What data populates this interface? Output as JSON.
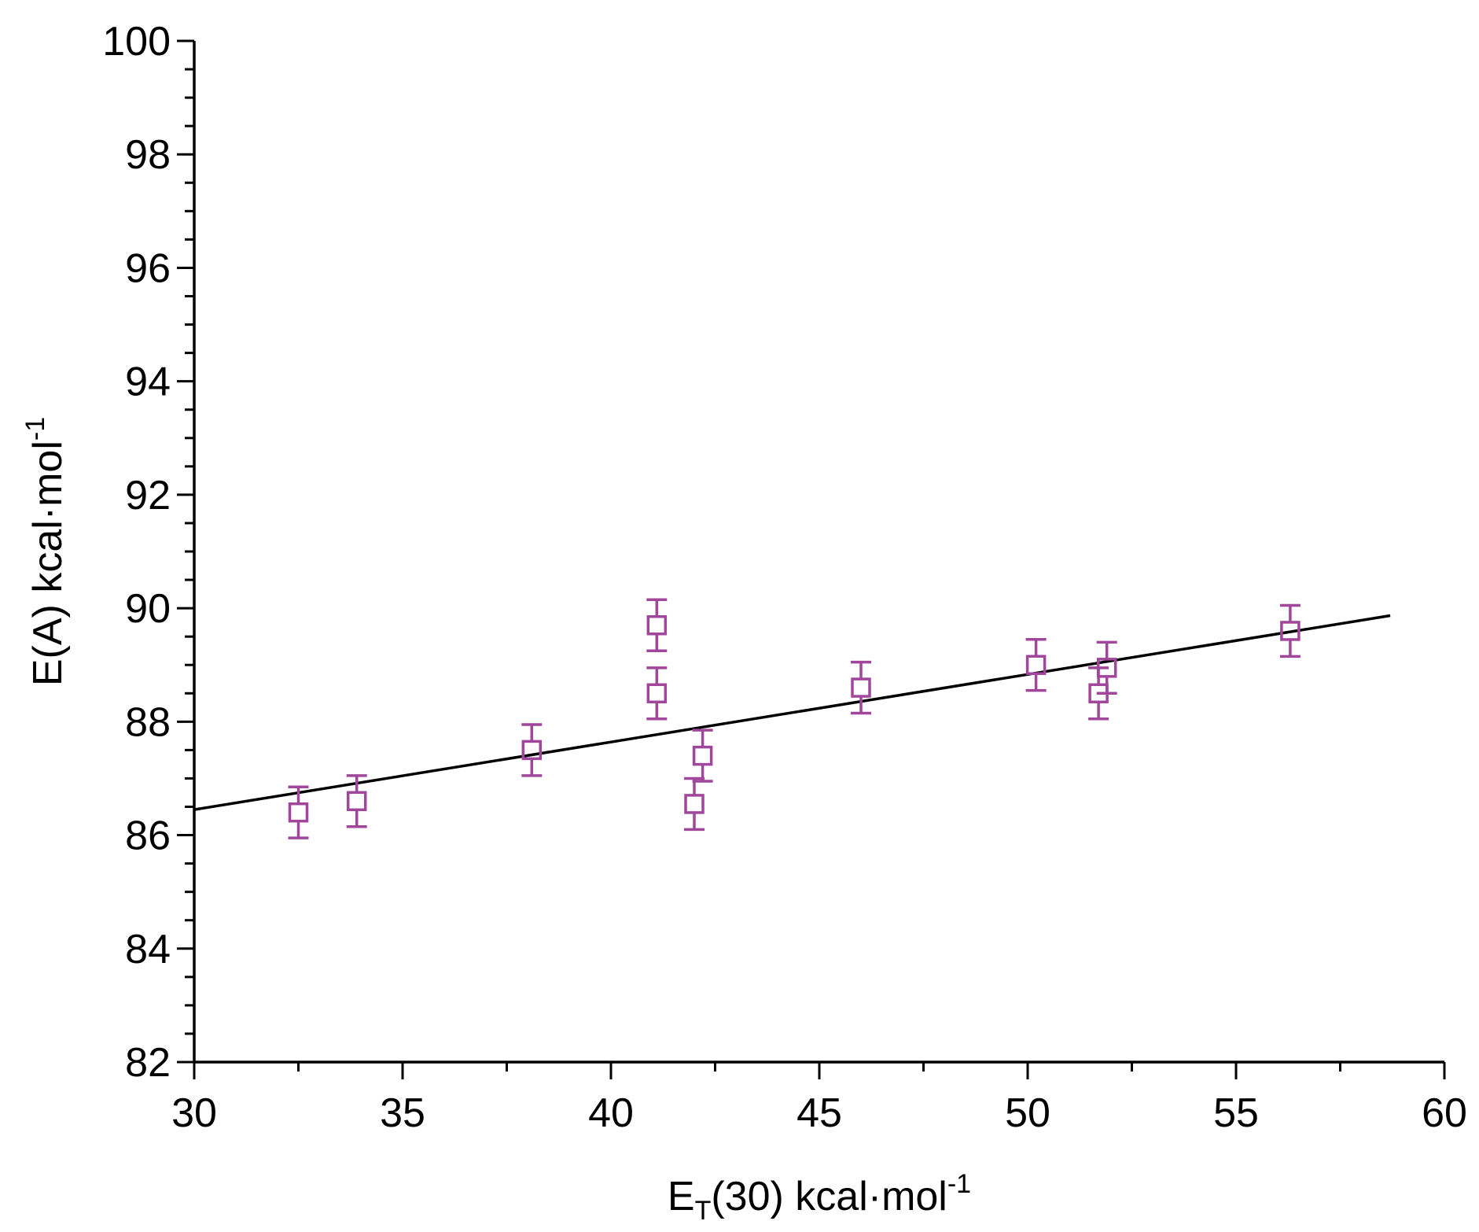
{
  "chart_data": {
    "type": "scatter",
    "title": "",
    "xlabel": {
      "main": "E",
      "sub": "T",
      "rest": "(30) kcal·mol",
      "sup": "-1"
    },
    "ylabel": {
      "main": "E(A) kcal·mol",
      "sup": "-1"
    },
    "xlim": [
      30,
      60
    ],
    "ylim": [
      82,
      100
    ],
    "x_ticks": [
      "30",
      "35",
      "40",
      "45",
      "50",
      "55",
      "60"
    ],
    "y_ticks": [
      "82",
      "84",
      "86",
      "88",
      "90",
      "92",
      "94",
      "96",
      "98",
      "100"
    ],
    "grid": false,
    "legend": "none",
    "marker_color": "#a0479b",
    "line_color": "#000000",
    "points": [
      {
        "x": 32.5,
        "y": 86.4,
        "err": 0.45
      },
      {
        "x": 33.9,
        "y": 86.6,
        "err": 0.45
      },
      {
        "x": 38.1,
        "y": 87.5,
        "err": 0.45
      },
      {
        "x": 41.1,
        "y": 89.7,
        "err": 0.45
      },
      {
        "x": 41.1,
        "y": 88.5,
        "err": 0.45
      },
      {
        "x": 42.0,
        "y": 86.55,
        "err": 0.45
      },
      {
        "x": 42.2,
        "y": 87.4,
        "err": 0.45
      },
      {
        "x": 46.0,
        "y": 88.6,
        "err": 0.45
      },
      {
        "x": 50.2,
        "y": 89.0,
        "err": 0.45
      },
      {
        "x": 51.7,
        "y": 88.5,
        "err": 0.45
      },
      {
        "x": 51.9,
        "y": 88.95,
        "err": 0.45
      },
      {
        "x": 56.3,
        "y": 89.6,
        "err": 0.45
      }
    ],
    "fit_line": {
      "x": [
        30,
        58.7
      ],
      "y": [
        86.45,
        89.87
      ]
    }
  }
}
